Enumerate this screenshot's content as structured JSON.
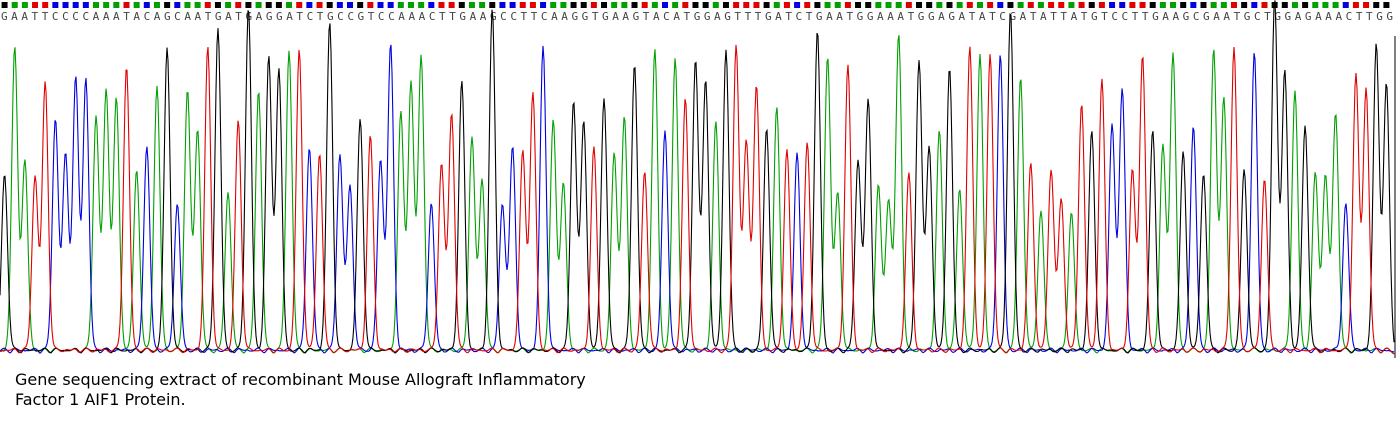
{
  "sequence": "GAATTCCCCAAATACAGCAATGATGAGGATCTGCCGTCCAAACTTGAAGCCTTCAAGGTGAAGTACATGGAGTTTGATCTGAATGGAAATGGAGATATCGATATTATGTCCTTGAAGCGAATGCTGGAGAAACTTGG",
  "caption": [
    "Gene sequencing extract of recombinant Mouse Allograft Inflammatory",
    "Factor 1 AIF1 Protein."
  ]
}
